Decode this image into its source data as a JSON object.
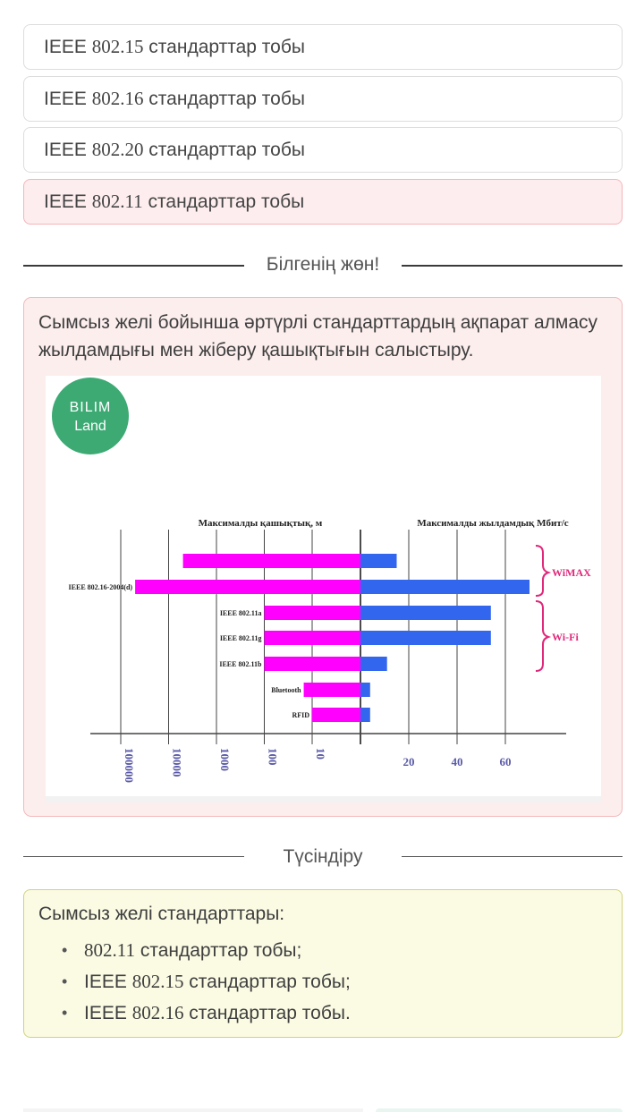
{
  "colors": {
    "wrong_bg": "#fdedee",
    "fact_bg": "#fdeeee",
    "explain_bg": "#fbfbe4",
    "bar_range": "#ff00ff",
    "bar_speed": "#3366ee",
    "bilim_logo": "#3daa74"
  },
  "options": [
    {
      "prefix": "IEEE ",
      "num": "802.15",
      "suffix": " стандарттар тобы",
      "state": "default"
    },
    {
      "prefix": "IEEE ",
      "num": "802.16",
      "suffix": " стандарттар тобы",
      "state": "default"
    },
    {
      "prefix": "IEEE ",
      "num": "802.20",
      "suffix": " стандарттар тобы",
      "state": "default"
    },
    {
      "prefix": "IEEE ",
      "num": "802.11",
      "suffix": " стандарттар тобы",
      "state": "wrong"
    }
  ],
  "divider_fact": "Білгенің жөн!",
  "fact": {
    "text": "Сымсыз желі бойынша әртүрлі стандарттардың ақпарат алмасу жылдамдығы мен жіберу қашықтығын салыстыру."
  },
  "figure": {
    "logo_line1": "BILIM",
    "logo_line2": "Land",
    "left_title": "Максималды қашықтық, м",
    "right_title": "Максималды жылдамдық Мбит/с",
    "wimax_label": "WiMAX",
    "wifi_label": "Wi-Fi",
    "rows": [
      {
        "label": "",
        "range_m": 5000,
        "speed_mbps": 15
      },
      {
        "label": "IEEE 802.16-2004(d)",
        "range_m": 50000,
        "speed_mbps": 70
      },
      {
        "label": "IEEE 802.11a",
        "range_m": 100,
        "speed_mbps": 54
      },
      {
        "label": "IEEE 802.11g",
        "range_m": 100,
        "speed_mbps": 54
      },
      {
        "label": "IEEE 802.11b",
        "range_m": 100,
        "speed_mbps": 11
      },
      {
        "label": "Bluetooth",
        "range_m": 15,
        "speed_mbps": 4
      },
      {
        "label": "RFID",
        "range_m": 10,
        "speed_mbps": 4
      }
    ],
    "left_ticks": [
      "100000",
      "10000",
      "1000",
      "100",
      "10"
    ],
    "right_ticks": [
      "20",
      "40",
      "60"
    ]
  },
  "divider_explain": "Түсіндіру",
  "explain": {
    "title": "Сымсыз желі стандарттары:",
    "items": [
      {
        "prefix": "",
        "num": "802.11",
        "suffix": " стандарттар тобы;"
      },
      {
        "prefix": "IEEE ",
        "num": "802.15",
        "suffix": " стандарттар тобы;"
      },
      {
        "prefix": "IEEE ",
        "num": "802.16",
        "suffix": " стандарттар тобы."
      }
    ]
  }
}
